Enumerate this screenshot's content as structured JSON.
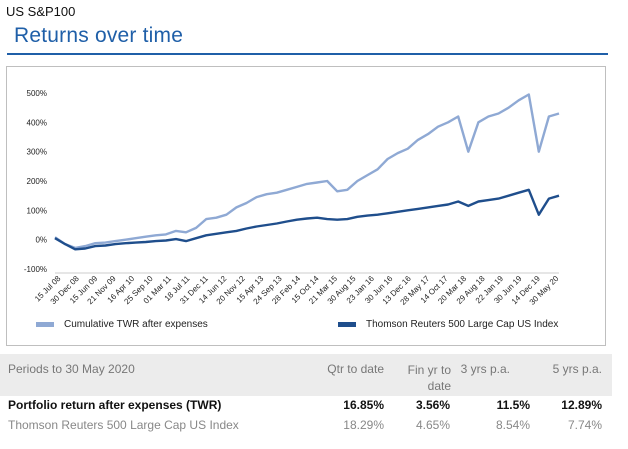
{
  "header": {
    "region": "US S&P100",
    "title": "Returns over time"
  },
  "chart_data": {
    "type": "line",
    "ylim": [
      -100,
      500
    ],
    "y_ticks": [
      "500%",
      "400%",
      "300%",
      "200%",
      "100%",
      "0%",
      "-100%"
    ],
    "y_tick_values": [
      500,
      400,
      300,
      200,
      100,
      0,
      -100
    ],
    "x_tick_labels": [
      "15 Jul 08",
      "30 Dec 08",
      "15 Jun 09",
      "21 Nov 09",
      "16 Apr 10",
      "25 Sep 10",
      "01 Mar 11",
      "18 Jul 11",
      "31 Dec 11",
      "14 Jun 12",
      "20 Nov 12",
      "15 Apr 13",
      "24 Sep 13",
      "28 Feb 14",
      "15 Oct 14",
      "21 Mar 15",
      "30 Aug 15",
      "23 Jan 16",
      "30 Jun 16",
      "13 Dec 16",
      "28 May 17",
      "14 Oct 17",
      "20 Mar 18",
      "29 Aug 18",
      "22 Jan 19",
      "30 Jun 19",
      "14 Dec 19",
      "30 May 20"
    ],
    "grid": false,
    "legend_position": "bottom",
    "series": [
      {
        "name": "Cumulative TWR after expenses",
        "color": "#8fa9d4",
        "values": [
          8,
          -15,
          -28,
          -22,
          -12,
          -10,
          -5,
          0,
          5,
          10,
          15,
          18,
          30,
          25,
          40,
          70,
          75,
          85,
          110,
          125,
          145,
          155,
          160,
          170,
          180,
          190,
          195,
          200,
          165,
          170,
          200,
          220,
          240,
          275,
          295,
          310,
          340,
          360,
          385,
          400,
          420,
          300,
          400,
          420,
          430,
          450,
          475,
          495,
          300,
          420,
          430
        ]
      },
      {
        "name": "Thomson Reuters 500 Large Cap US Index",
        "color": "#1f4e8c",
        "values": [
          5,
          -15,
          -33,
          -30,
          -22,
          -20,
          -15,
          -12,
          -10,
          -8,
          -5,
          -3,
          2,
          -5,
          5,
          15,
          20,
          25,
          30,
          38,
          45,
          50,
          55,
          62,
          68,
          72,
          75,
          70,
          68,
          70,
          78,
          82,
          85,
          90,
          95,
          100,
          105,
          110,
          115,
          120,
          130,
          115,
          130,
          135,
          140,
          150,
          160,
          170,
          85,
          140,
          150
        ]
      }
    ]
  },
  "table": {
    "headers": {
      "period": "Periods to 30 May 2020",
      "qtr": "Qtr to date",
      "fin": "Fin yr to date",
      "y3": "3 yrs p.a.",
      "y5": "5 yrs p.a."
    },
    "rows": [
      {
        "label": "Portfolio return after expenses (TWR)",
        "qtr": "16.85%",
        "fin": "3.56%",
        "y3": "11.5%",
        "y5": "12.89%"
      },
      {
        "label": "Thomson Reuters 500 Large Cap US Index",
        "qtr": "18.29%",
        "fin": "4.65%",
        "y3": "8.54%",
        "y5": "7.74%"
      }
    ]
  }
}
